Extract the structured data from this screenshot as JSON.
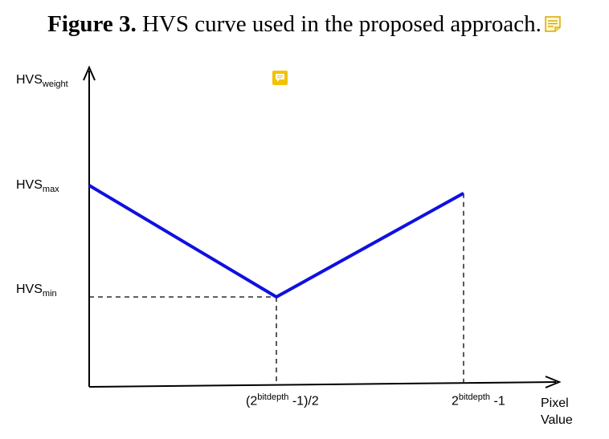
{
  "caption": {
    "prefix": "Figure 3.",
    "text": " HVS curve used in the proposed approach."
  },
  "icons": {
    "caption_note": "sticky-note-icon",
    "floating_note": "comment-icon",
    "note_color": "#f2c200"
  },
  "chart_data": {
    "type": "line",
    "series_color": "#1010e0",
    "y_axis": {
      "label_main": "HVS",
      "label_sub": "weight",
      "ticks": [
        {
          "main": "HVS",
          "sub": "max",
          "value": 1.0
        },
        {
          "main": "HVS",
          "sub": "min",
          "value": 0.0
        }
      ]
    },
    "x_axis": {
      "label_line1": "Pixel",
      "label_line2": "Value",
      "ticks": [
        {
          "pre": "(2",
          "sup": "bitdepth",
          "post": " -1)/2",
          "value": 0.5
        },
        {
          "pre": "2",
          "sup": "bitdepth",
          "post": " -1",
          "value": 1.0
        }
      ]
    },
    "points": [
      {
        "x": 0.0,
        "y": 1.0
      },
      {
        "x": 0.5,
        "y": 0.0
      },
      {
        "x": 1.0,
        "y": 0.93
      }
    ],
    "grid": false
  }
}
